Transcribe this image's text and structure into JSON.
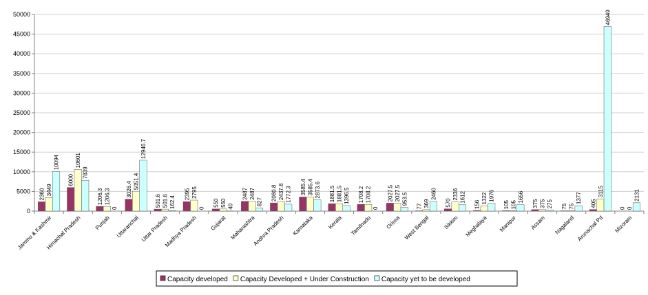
{
  "chart_data": {
    "type": "bar",
    "title": "",
    "xlabel": "",
    "ylabel": "",
    "ylim": [
      0,
      50000
    ],
    "yticks": [
      0,
      5000,
      10000,
      15000,
      20000,
      25000,
      30000,
      35000,
      40000,
      45000,
      50000
    ],
    "grid": "horizontal",
    "legend_position": "bottom",
    "categories": [
      "Jammu & Kashmir",
      "Himachal Pradesh",
      "Punjab",
      "Uttaranchal",
      "Uttar Pradesh",
      "Madhya Pradesh",
      "Gujarat",
      "Maharashtra",
      "Andhra Pradesh",
      "Karnataka",
      "Kerala",
      "Tamilnadu",
      "Orissa",
      "West Bengal",
      "Sikkim",
      "Meghalaya",
      "Manipur",
      "Assam",
      "Nagaland",
      "Arunachal Pd",
      "Mizoram"
    ],
    "series": [
      {
        "name": "Capacity developed",
        "color": "#993366",
        "values": [
          2360,
          6000,
          1206.3,
          3026.4,
          501.6,
          2395,
          550,
          2487,
          2080.8,
          3585.4,
          1881.5,
          1708.2,
          2027.5,
          77,
          570,
          156,
          105,
          375,
          75,
          405,
          0
        ],
        "labels": [
          "2360",
          "6000",
          "1206.3",
          "3026.4",
          "501.6",
          "2395",
          "550",
          "2487",
          "2080.8",
          "3585.4",
          "1881.5",
          "1708.2",
          "2027.5",
          "77",
          "570",
          "156",
          "105",
          "375",
          "75",
          "405",
          "0"
        ]
      },
      {
        "name": "Capacity Developed + Under Construction",
        "color": "#ffffcc",
        "values": [
          3449,
          10601,
          1206.3,
          5051.4,
          501.6,
          2795,
          550,
          2487,
          2437.8,
          3585.4,
          1881.5,
          1708.2,
          2027.5,
          369,
          2336,
          1322,
          105,
          375,
          75,
          3115,
          0
        ],
        "labels": [
          "3449",
          "10601",
          "1206.3",
          "5051.4",
          "501.6",
          "2795",
          "550",
          "2487",
          "2437.8",
          "3585.4",
          "1881.5",
          "1708.2",
          "2027.5",
          "369",
          "2336",
          "1322",
          "105",
          "375",
          "75",
          "3115",
          "0"
        ]
      },
      {
        "name": "Capacity yet to be developed",
        "color": "#ccffff",
        "values": [
          10094,
          7839,
          0,
          12946.7,
          162.4,
          0,
          40,
          827,
          1772.3,
          2873.6,
          1396.5,
          0,
          953.5,
          2460,
          1612,
          1976,
          1656,
          275,
          1377,
          46949,
          2131
        ],
        "labels": [
          "10094",
          "7839",
          "0",
          "12946.7",
          "162.4",
          "0",
          "40",
          "827",
          "1772.3",
          "2873.6",
          "1396.5",
          "0",
          "953.5",
          "2460",
          "1612",
          "1976",
          "1656",
          "275",
          "1377",
          "46949",
          "2131"
        ]
      }
    ]
  }
}
